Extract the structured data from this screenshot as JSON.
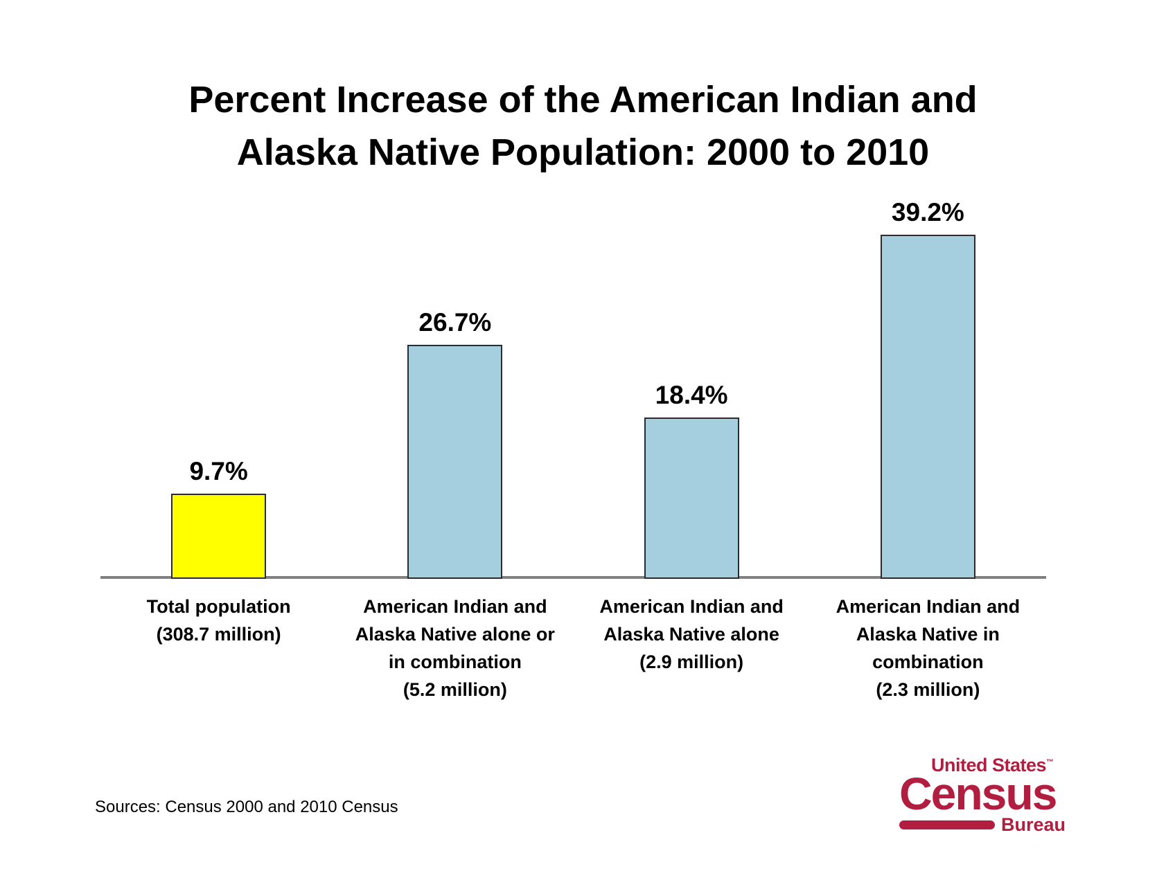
{
  "title": {
    "line1": "Percent Increase of the American Indian and",
    "line2": "Alaska Native Population: 2000 to 2010"
  },
  "chart_data": {
    "type": "bar",
    "title": "Percent Increase of the American Indian and Alaska Native Population: 2000 to 2010",
    "categories": [
      "Total population (308.7 million)",
      "American Indian and Alaska Native alone or in combination (5.2 million)",
      "American Indian and Alaska Native alone (2.9 million)",
      "American Indian and Alaska Native in combination (2.3 million)"
    ],
    "category_label_lines": [
      [
        "Total population",
        "(308.7 million)"
      ],
      [
        "American Indian and",
        "Alaska Native alone or",
        "in combination",
        "(5.2 million)"
      ],
      [
        "American Indian and",
        "Alaska Native alone",
        "(2.9 million)"
      ],
      [
        "American Indian and",
        "Alaska Native  in",
        "combination",
        "(2.3 million)"
      ]
    ],
    "values": [
      9.7,
      26.7,
      18.4,
      39.2
    ],
    "value_labels": [
      "9.7%",
      "26.7%",
      "18.4%",
      "39.2%"
    ],
    "bar_fill_colors": [
      "#FFFF00",
      "#A5CEDE",
      "#A5CEDE",
      "#A5CEDE"
    ],
    "bar_border_color": "#2b2b2b",
    "axis_line_color": "#808080",
    "xlabel": "",
    "ylabel": "",
    "ylim": [
      0,
      43
    ],
    "grid": false,
    "legend": null
  },
  "source_note": "Sources: Census 2000 and 2010 Census",
  "logo": {
    "top": "United States",
    "tm": "™",
    "name": "Census",
    "bottom": "Bureau",
    "color": "#B11E3F"
  }
}
